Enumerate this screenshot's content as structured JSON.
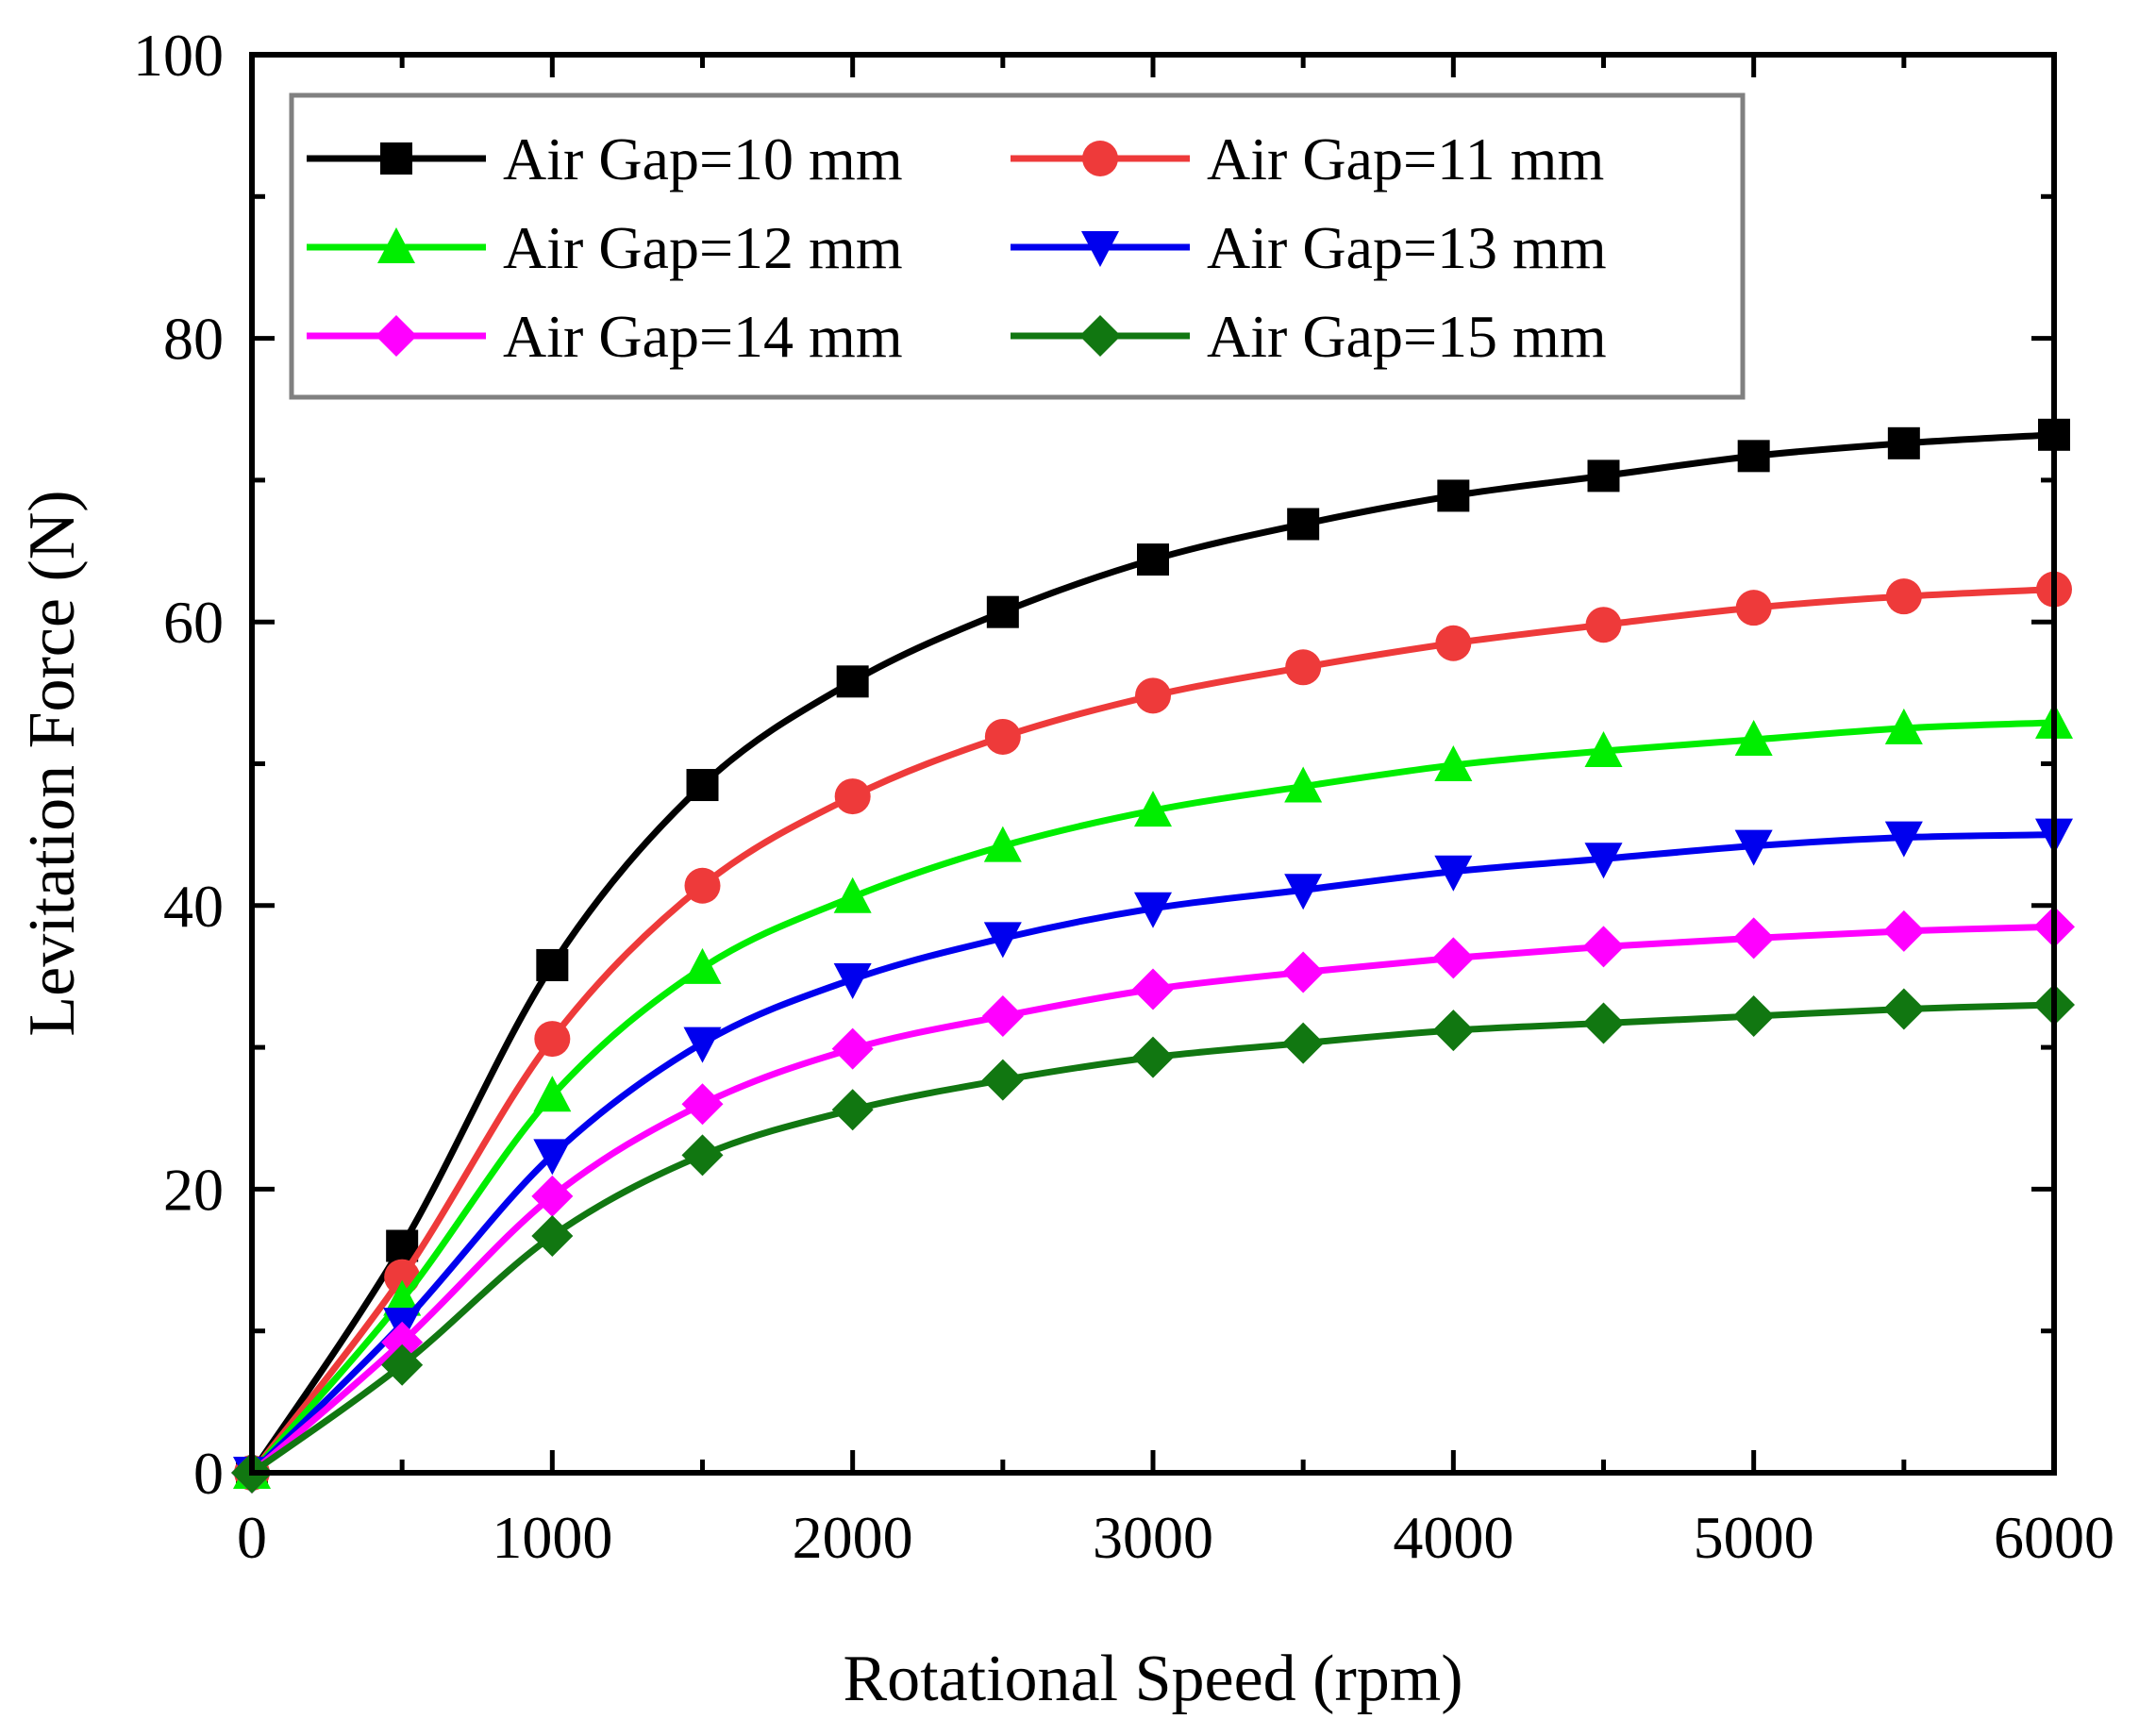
{
  "chart_data": {
    "type": "line",
    "title": "",
    "xlabel": "Rotational Speed (rpm)",
    "ylabel": "Levitation Force (N)",
    "xlim": [
      0,
      6000
    ],
    "ylim": [
      0,
      100
    ],
    "x_ticks": [
      "0",
      "1000",
      "2000",
      "3000",
      "4000",
      "5000",
      "6000"
    ],
    "y_ticks": [
      "0",
      "20",
      "40",
      "60",
      "80",
      "100"
    ],
    "grid": false,
    "legend_position": "top-left",
    "x": [
      0,
      500,
      1000,
      1500,
      2000,
      2500,
      3000,
      3500,
      4000,
      4500,
      5000,
      5500,
      6000
    ],
    "series": [
      {
        "name": "Air Gap=10 mm",
        "color": "#000000",
        "marker": "square",
        "values": [
          0,
          16,
          35.8,
          48.5,
          55.8,
          60.7,
          64.4,
          66.9,
          68.9,
          70.3,
          71.7,
          72.6,
          73.2
        ]
      },
      {
        "name": "Air Gap=11 mm",
        "color": "#ee3a3a",
        "marker": "circle",
        "values": [
          0,
          13.8,
          30.6,
          41.4,
          47.7,
          51.9,
          54.8,
          56.8,
          58.5,
          59.8,
          61.0,
          61.8,
          62.3
        ]
      },
      {
        "name": "Air Gap=12 mm",
        "color": "#00ee00",
        "marker": "triangle-up",
        "values": [
          0,
          12.2,
          26.6,
          35.6,
          40.6,
          44.2,
          46.7,
          48.4,
          49.9,
          50.9,
          51.7,
          52.5,
          52.9
        ]
      },
      {
        "name": "Air Gap=13 mm",
        "color": "#0000ee",
        "marker": "triangle-down",
        "values": [
          0,
          10.5,
          22.4,
          30.3,
          34.8,
          37.7,
          39.8,
          41.1,
          42.4,
          43.3,
          44.2,
          44.8,
          45.0
        ]
      },
      {
        "name": "Air Gap=14 mm",
        "color": "#ff00ff",
        "marker": "diamond",
        "values": [
          0,
          9.2,
          19.5,
          26.0,
          29.9,
          32.2,
          34.1,
          35.3,
          36.3,
          37.1,
          37.7,
          38.2,
          38.5
        ]
      },
      {
        "name": "Air Gap=15 mm",
        "color": "#117711",
        "marker": "diamond",
        "values": [
          0,
          7.6,
          16.7,
          22.4,
          25.6,
          27.7,
          29.3,
          30.3,
          31.2,
          31.7,
          32.2,
          32.7,
          33.0
        ]
      }
    ]
  }
}
